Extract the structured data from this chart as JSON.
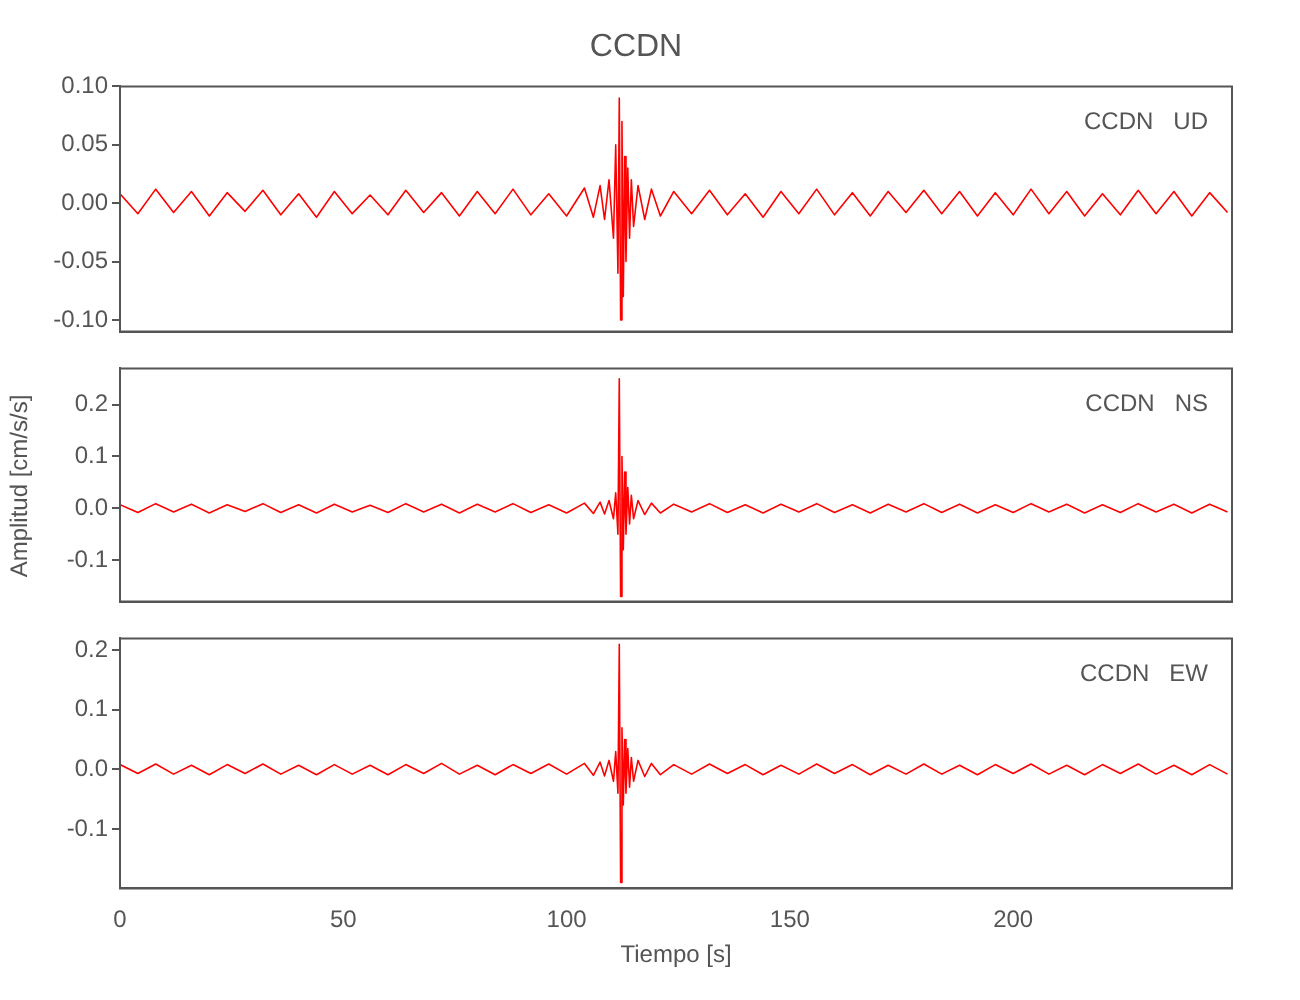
{
  "chart_data": [
    {
      "type": "line",
      "title": "CCDN",
      "annotations": [
        "CCDN   UD"
      ],
      "tick_labels": "y",
      "x": [
        0,
        4,
        8,
        12,
        16,
        20,
        24,
        28,
        32,
        36,
        40,
        44,
        48,
        52,
        56,
        60,
        64,
        68,
        72,
        76,
        80,
        84,
        88,
        92,
        96,
        100,
        104,
        106,
        107.5,
        108.5,
        109.5,
        110.5,
        111,
        111.5,
        111.8,
        112.1,
        112.4,
        112.7,
        113,
        113.3,
        113.7,
        114.1,
        114.5,
        115,
        116,
        117.5,
        119,
        121,
        124,
        128,
        132,
        136,
        140,
        144,
        148,
        152,
        156,
        160,
        164,
        168,
        172,
        176,
        180,
        184,
        188,
        192,
        196,
        200,
        204,
        208,
        212,
        216,
        220,
        224,
        228,
        232,
        236,
        240,
        244,
        248
      ],
      "series": [
        {
          "color": "#ff0000",
          "values": [
            0.008,
            -0.009,
            0.012,
            -0.008,
            0.01,
            -0.011,
            0.009,
            -0.007,
            0.011,
            -0.01,
            0.008,
            -0.012,
            0.01,
            -0.009,
            0.007,
            -0.01,
            0.011,
            -0.008,
            0.009,
            -0.011,
            0.01,
            -0.009,
            0.012,
            -0.01,
            0.008,
            -0.011,
            0.013,
            -0.012,
            0.015,
            -0.014,
            0.02,
            -0.03,
            0.05,
            -0.06,
            0.09,
            -0.1,
            0.07,
            -0.08,
            0.04,
            -0.05,
            0.03,
            -0.03,
            0.02,
            -0.02,
            0.015,
            -0.014,
            0.012,
            -0.011,
            0.01,
            -0.009,
            0.011,
            -0.01,
            0.008,
            -0.012,
            0.01,
            -0.009,
            0.012,
            -0.01,
            0.009,
            -0.011,
            0.01,
            -0.008,
            0.011,
            -0.009,
            0.01,
            -0.011,
            0.009,
            -0.01,
            0.012,
            -0.009,
            0.01,
            -0.011,
            0.008,
            -0.01,
            0.011,
            -0.009,
            0.01,
            -0.011,
            0.009,
            -0.008
          ]
        }
      ],
      "xlim": [
        0,
        249
      ],
      "xticks": [
        0,
        50,
        100,
        150,
        200
      ],
      "ylim": [
        -0.11,
        0.1
      ],
      "yticks": [
        {
          "value": -0.1,
          "label": "-0.10"
        },
        {
          "value": -0.05,
          "label": "-0.05"
        },
        {
          "value": 0,
          "label": "0.00"
        },
        {
          "value": 0.05,
          "label": "0.05"
        },
        {
          "value": 0.1,
          "label": "0.10"
        }
      ]
    },
    {
      "type": "line",
      "ylabel": "Amplitud [cm/s/s]",
      "annotations": [
        "CCDN   NS"
      ],
      "tick_labels": "y",
      "x": [
        0,
        4,
        8,
        12,
        16,
        20,
        24,
        28,
        32,
        36,
        40,
        44,
        48,
        52,
        56,
        60,
        64,
        68,
        72,
        76,
        80,
        84,
        88,
        92,
        96,
        100,
        104,
        106,
        107.5,
        108.5,
        109.5,
        110.5,
        111,
        111.5,
        111.8,
        112.1,
        112.4,
        112.7,
        113,
        113.3,
        113.7,
        114.1,
        114.5,
        115,
        116,
        117.5,
        119,
        121,
        124,
        128,
        132,
        136,
        140,
        144,
        148,
        152,
        156,
        160,
        164,
        168,
        172,
        176,
        180,
        184,
        188,
        192,
        196,
        200,
        204,
        208,
        212,
        216,
        220,
        224,
        228,
        232,
        236,
        240,
        244,
        248
      ],
      "series": [
        {
          "color": "#ff0000",
          "values": [
            0.007,
            -0.008,
            0.009,
            -0.007,
            0.008,
            -0.009,
            0.007,
            -0.006,
            0.009,
            -0.008,
            0.007,
            -0.009,
            0.008,
            -0.007,
            0.006,
            -0.008,
            0.009,
            -0.007,
            0.008,
            -0.009,
            0.008,
            -0.007,
            0.009,
            -0.008,
            0.007,
            -0.009,
            0.01,
            -0.01,
            0.012,
            -0.011,
            0.015,
            -0.02,
            0.03,
            -0.05,
            0.25,
            -0.17,
            0.1,
            -0.08,
            0.07,
            -0.05,
            0.04,
            -0.03,
            0.025,
            -0.02,
            0.015,
            -0.012,
            0.01,
            -0.009,
            0.008,
            -0.007,
            0.009,
            -0.008,
            0.007,
            -0.009,
            0.008,
            -0.007,
            0.009,
            -0.008,
            0.007,
            -0.009,
            0.008,
            -0.007,
            0.009,
            -0.008,
            0.008,
            -0.009,
            0.007,
            -0.008,
            0.009,
            -0.007,
            0.008,
            -0.009,
            0.007,
            -0.008,
            0.009,
            -0.007,
            0.008,
            -0.009,
            0.008,
            -0.007
          ]
        }
      ],
      "xlim": [
        0,
        249
      ],
      "xticks": [
        0,
        50,
        100,
        150,
        200
      ],
      "ylim": [
        -0.18,
        0.27
      ],
      "yticks": [
        -0.1,
        {
          "value": 0,
          "label": "0.0"
        },
        0.1,
        0.2
      ]
    },
    {
      "type": "line",
      "xlabel": "Tiempo [s]",
      "annotations": [
        "CCDN   EW"
      ],
      "x": [
        0,
        4,
        8,
        12,
        16,
        20,
        24,
        28,
        32,
        36,
        40,
        44,
        48,
        52,
        56,
        60,
        64,
        68,
        72,
        76,
        80,
        84,
        88,
        92,
        96,
        100,
        104,
        106,
        107.5,
        108.5,
        109.5,
        110.5,
        111,
        111.5,
        111.8,
        112.1,
        112.4,
        112.7,
        113,
        113.3,
        113.7,
        114.1,
        114.5,
        115,
        116,
        117.5,
        119,
        121,
        124,
        128,
        132,
        136,
        140,
        144,
        148,
        152,
        156,
        160,
        164,
        168,
        172,
        176,
        180,
        184,
        188,
        192,
        196,
        200,
        204,
        208,
        212,
        216,
        220,
        224,
        228,
        232,
        236,
        240,
        244,
        248
      ],
      "series": [
        {
          "color": "#ff0000",
          "values": [
            0.008,
            -0.007,
            0.009,
            -0.008,
            0.007,
            -0.009,
            0.008,
            -0.007,
            0.009,
            -0.008,
            0.007,
            -0.009,
            0.008,
            -0.008,
            0.007,
            -0.009,
            0.008,
            -0.007,
            0.01,
            -0.008,
            0.007,
            -0.009,
            0.008,
            -0.007,
            0.009,
            -0.008,
            0.01,
            -0.01,
            0.012,
            -0.011,
            0.015,
            -0.02,
            0.03,
            -0.04,
            0.21,
            -0.19,
            0.07,
            -0.06,
            0.05,
            -0.04,
            0.035,
            -0.03,
            0.02,
            -0.02,
            0.015,
            -0.012,
            0.01,
            -0.009,
            0.008,
            -0.008,
            0.009,
            -0.007,
            0.008,
            -0.009,
            0.007,
            -0.008,
            0.009,
            -0.007,
            0.008,
            -0.009,
            0.007,
            -0.008,
            0.009,
            -0.008,
            0.007,
            -0.009,
            0.008,
            -0.007,
            0.009,
            -0.008,
            0.007,
            -0.009,
            0.008,
            -0.007,
            0.009,
            -0.008,
            0.007,
            -0.009,
            0.008,
            -0.008
          ]
        }
      ],
      "xlim": [
        0,
        249
      ],
      "xticks": [
        0,
        50,
        100,
        150,
        200
      ],
      "ylim": [
        -0.2,
        0.22
      ],
      "yticks": [
        -0.1,
        {
          "value": 0,
          "label": "0.0"
        },
        0.1,
        0.2
      ]
    }
  ]
}
